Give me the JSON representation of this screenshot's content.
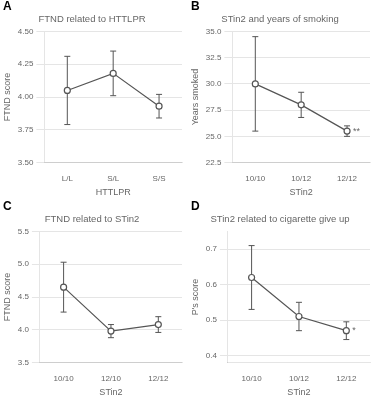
{
  "chart_data": [
    {
      "type": "line",
      "panel_label": "A",
      "title": "FTND related to HTTLPR",
      "xlabel": "HTTLPR",
      "ylabel": "FTND score",
      "categories": [
        "L/L",
        "S/L",
        "S/S"
      ],
      "values": [
        4.05,
        4.18,
        3.93
      ],
      "errors_upper": [
        0.26,
        0.17,
        0.09
      ],
      "errors_lower": [
        0.26,
        0.17,
        0.09
      ],
      "ylim": [
        3.5,
        4.5
      ],
      "yticks": [
        {
          "value": 3.5,
          "label": "3.50"
        },
        {
          "value": 3.75,
          "label": "3.75"
        },
        {
          "value": 4.0,
          "label": "4.00"
        },
        {
          "value": 4.25,
          "label": "4.25"
        },
        {
          "value": 4.5,
          "label": "4.50"
        }
      ],
      "color": "#555555",
      "marker": "circle",
      "grid": true
    },
    {
      "type": "line",
      "panel_label": "B",
      "title": "STin2 and years of smoking",
      "xlabel": "STin2",
      "ylabel": "Years smoked",
      "categories": [
        "10/10",
        "10/12",
        "12/12"
      ],
      "values": [
        30.0,
        28.0,
        25.5
      ],
      "errors_upper": [
        4.5,
        1.2,
        0.5
      ],
      "errors_lower": [
        4.5,
        1.2,
        0.5
      ],
      "ylim": [
        22.5,
        35.0
      ],
      "yticks": [
        22.5,
        {
          "value": 25,
          "label": "25.0"
        },
        27.5,
        {
          "value": 30,
          "label": "30.0"
        },
        32.5,
        {
          "value": 35,
          "label": "35.0"
        }
      ],
      "annotations": [
        {
          "text": "**",
          "x": "12/12",
          "y": 25.5
        }
      ],
      "color": "#555555",
      "marker": "circle",
      "grid": true
    },
    {
      "type": "line",
      "panel_label": "C",
      "title": "FTND related to STin2",
      "xlabel": "STin2",
      "ylabel": "FTND score",
      "categories": [
        "10/10",
        "12/10",
        "12/12"
      ],
      "values": [
        4.65,
        3.98,
        4.08
      ],
      "errors_upper": [
        0.38,
        0.1,
        0.12
      ],
      "errors_lower": [
        0.38,
        0.1,
        0.12
      ],
      "ylim": [
        3.5,
        5.5
      ],
      "yticks": [
        3.5,
        {
          "value": 4,
          "label": "4.0"
        },
        4.5,
        {
          "value": 5,
          "label": "5.0"
        },
        5.5
      ],
      "color": "#555555",
      "marker": "circle",
      "grid": true
    },
    {
      "type": "line",
      "panel_label": "D",
      "title": "STin2 related to cigarette give up",
      "xlabel": "STin2",
      "ylabel": "P's score",
      "categories": [
        "10/10",
        "10/12",
        "12/12"
      ],
      "values": [
        0.62,
        0.51,
        0.47
      ],
      "errors_upper": [
        0.09,
        0.04,
        0.025
      ],
      "errors_lower": [
        0.09,
        0.04,
        0.025
      ],
      "ylim": [
        0.38,
        0.75
      ],
      "yticks": [
        0.4,
        0.5,
        0.6,
        0.7
      ],
      "annotations": [
        {
          "text": "*",
          "x": "12/12",
          "y": 0.47
        }
      ],
      "color": "#555555",
      "marker": "circle",
      "grid": true
    }
  ]
}
